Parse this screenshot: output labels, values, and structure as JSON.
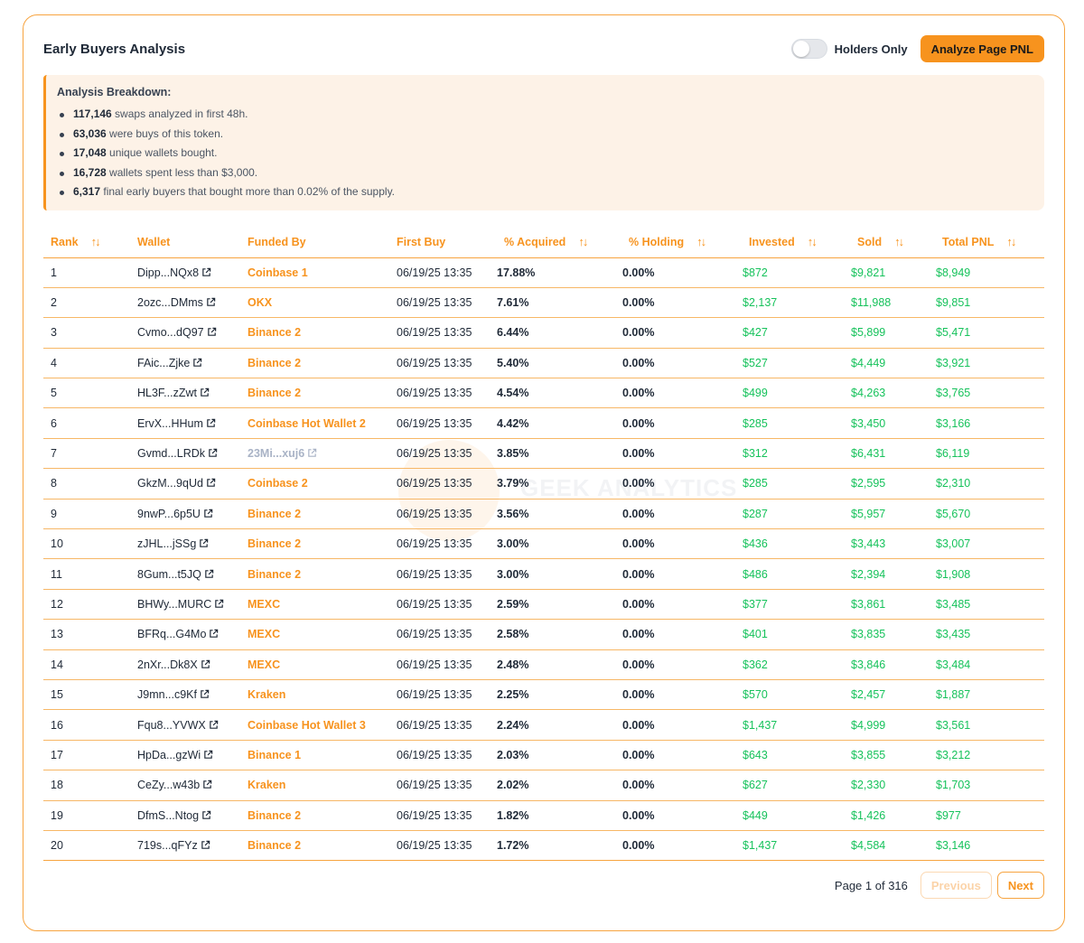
{
  "header": {
    "title": "Early Buyers Analysis",
    "toggle_label": "Holders Only",
    "toggle_on": false,
    "analyze_button": "Analyze Page PNL"
  },
  "breakdown": {
    "title": "Analysis Breakdown:",
    "items": [
      {
        "value": "117,146",
        "text": " swaps analyzed in first 48h."
      },
      {
        "value": "63,036",
        "text": " were buys of this token."
      },
      {
        "value": "17,048",
        "text": " unique wallets bought."
      },
      {
        "value": "16,728",
        "text": " wallets spent less than $3,000."
      },
      {
        "value": "6,317",
        "text": " final early buyers that bought more than 0.02% of the supply."
      }
    ]
  },
  "table": {
    "columns": [
      "Rank",
      "Wallet",
      "Funded By",
      "First Buy",
      "% Acquired",
      "% Holding",
      "Invested",
      "Sold",
      "Total PNL"
    ],
    "rows": [
      {
        "rank": "1",
        "wallet": "Dipp...NQx8",
        "funded": "Coinbase 1",
        "first_buy": "06/19/25 13:35",
        "acquired": "17.88%",
        "holding": "0.00%",
        "invested": "$872",
        "sold": "$9,821",
        "pnl": "$8,949"
      },
      {
        "rank": "2",
        "wallet": "2ozc...DMms",
        "funded": "OKX",
        "first_buy": "06/19/25 13:35",
        "acquired": "7.61%",
        "holding": "0.00%",
        "invested": "$2,137",
        "sold": "$11,988",
        "pnl": "$9,851"
      },
      {
        "rank": "3",
        "wallet": "Cvmo...dQ97",
        "funded": "Binance 2",
        "first_buy": "06/19/25 13:35",
        "acquired": "6.44%",
        "holding": "0.00%",
        "invested": "$427",
        "sold": "$5,899",
        "pnl": "$5,471"
      },
      {
        "rank": "4",
        "wallet": "FAic...Zjke",
        "funded": "Binance 2",
        "first_buy": "06/19/25 13:35",
        "acquired": "5.40%",
        "holding": "0.00%",
        "invested": "$527",
        "sold": "$4,449",
        "pnl": "$3,921"
      },
      {
        "rank": "5",
        "wallet": "HL3F...zZwt",
        "funded": "Binance 2",
        "first_buy": "06/19/25 13:35",
        "acquired": "4.54%",
        "holding": "0.00%",
        "invested": "$499",
        "sold": "$4,263",
        "pnl": "$3,765"
      },
      {
        "rank": "6",
        "wallet": "ErvX...HHum",
        "funded": "Coinbase Hot Wallet 2",
        "first_buy": "06/19/25 13:35",
        "acquired": "4.42%",
        "holding": "0.00%",
        "invested": "$285",
        "sold": "$3,450",
        "pnl": "$3,166"
      },
      {
        "rank": "7",
        "wallet": "Gvmd...LRDk",
        "funded": "23Mi...xuj6",
        "funded_is_wallet": true,
        "first_buy": "06/19/25 13:35",
        "acquired": "3.85%",
        "holding": "0.00%",
        "invested": "$312",
        "sold": "$6,431",
        "pnl": "$6,119"
      },
      {
        "rank": "8",
        "wallet": "GkzM...9qUd",
        "funded": "Coinbase 2",
        "first_buy": "06/19/25 13:35",
        "acquired": "3.79%",
        "holding": "0.00%",
        "invested": "$285",
        "sold": "$2,595",
        "pnl": "$2,310"
      },
      {
        "rank": "9",
        "wallet": "9nwP...6p5U",
        "funded": "Binance 2",
        "first_buy": "06/19/25 13:35",
        "acquired": "3.56%",
        "holding": "0.00%",
        "invested": "$287",
        "sold": "$5,957",
        "pnl": "$5,670"
      },
      {
        "rank": "10",
        "wallet": "zJHL...jSSg",
        "funded": "Binance 2",
        "first_buy": "06/19/25 13:35",
        "acquired": "3.00%",
        "holding": "0.00%",
        "invested": "$436",
        "sold": "$3,443",
        "pnl": "$3,007"
      },
      {
        "rank": "11",
        "wallet": "8Gum...t5JQ",
        "funded": "Binance 2",
        "first_buy": "06/19/25 13:35",
        "acquired": "3.00%",
        "holding": "0.00%",
        "invested": "$486",
        "sold": "$2,394",
        "pnl": "$1,908"
      },
      {
        "rank": "12",
        "wallet": "BHWy...MURC",
        "funded": "MEXC",
        "first_buy": "06/19/25 13:35",
        "acquired": "2.59%",
        "holding": "0.00%",
        "invested": "$377",
        "sold": "$3,861",
        "pnl": "$3,485"
      },
      {
        "rank": "13",
        "wallet": "BFRq...G4Mo",
        "funded": "MEXC",
        "first_buy": "06/19/25 13:35",
        "acquired": "2.58%",
        "holding": "0.00%",
        "invested": "$401",
        "sold": "$3,835",
        "pnl": "$3,435"
      },
      {
        "rank": "14",
        "wallet": "2nXr...Dk8X",
        "funded": "MEXC",
        "first_buy": "06/19/25 13:35",
        "acquired": "2.48%",
        "holding": "0.00%",
        "invested": "$362",
        "sold": "$3,846",
        "pnl": "$3,484"
      },
      {
        "rank": "15",
        "wallet": "J9mn...c9Kf",
        "funded": "Kraken",
        "first_buy": "06/19/25 13:35",
        "acquired": "2.25%",
        "holding": "0.00%",
        "invested": "$570",
        "sold": "$2,457",
        "pnl": "$1,887"
      },
      {
        "rank": "16",
        "wallet": "Fqu8...YVWX",
        "funded": "Coinbase Hot Wallet 3",
        "first_buy": "06/19/25 13:35",
        "acquired": "2.24%",
        "holding": "0.00%",
        "invested": "$1,437",
        "sold": "$4,999",
        "pnl": "$3,561"
      },
      {
        "rank": "17",
        "wallet": "HpDa...gzWi",
        "funded": "Binance 1",
        "first_buy": "06/19/25 13:35",
        "acquired": "2.03%",
        "holding": "0.00%",
        "invested": "$643",
        "sold": "$3,855",
        "pnl": "$3,212"
      },
      {
        "rank": "18",
        "wallet": "CeZy...w43b",
        "funded": "Kraken",
        "first_buy": "06/19/25 13:35",
        "acquired": "2.02%",
        "holding": "0.00%",
        "invested": "$627",
        "sold": "$2,330",
        "pnl": "$1,703"
      },
      {
        "rank": "19",
        "wallet": "DfmS...Ntog",
        "funded": "Binance 2",
        "first_buy": "06/19/25 13:35",
        "acquired": "1.82%",
        "holding": "0.00%",
        "invested": "$449",
        "sold": "$1,426",
        "pnl": "$977"
      },
      {
        "rank": "20",
        "wallet": "719s...qFYz",
        "funded": "Binance 2",
        "first_buy": "06/19/25 13:35",
        "acquired": "1.72%",
        "holding": "0.00%",
        "invested": "$1,437",
        "sold": "$4,584",
        "pnl": "$3,146"
      }
    ]
  },
  "pagination": {
    "info": "Page 1 of 316",
    "previous": "Previous",
    "next": "Next"
  },
  "watermark": "GEEK ANALYTICS",
  "colors": {
    "accent": "#f7931e",
    "positive": "#16c25b",
    "breakdown_bg": "#fdf2e7"
  },
  "icons": {
    "sort": "sort-arrows-icon",
    "external": "external-link-icon"
  }
}
